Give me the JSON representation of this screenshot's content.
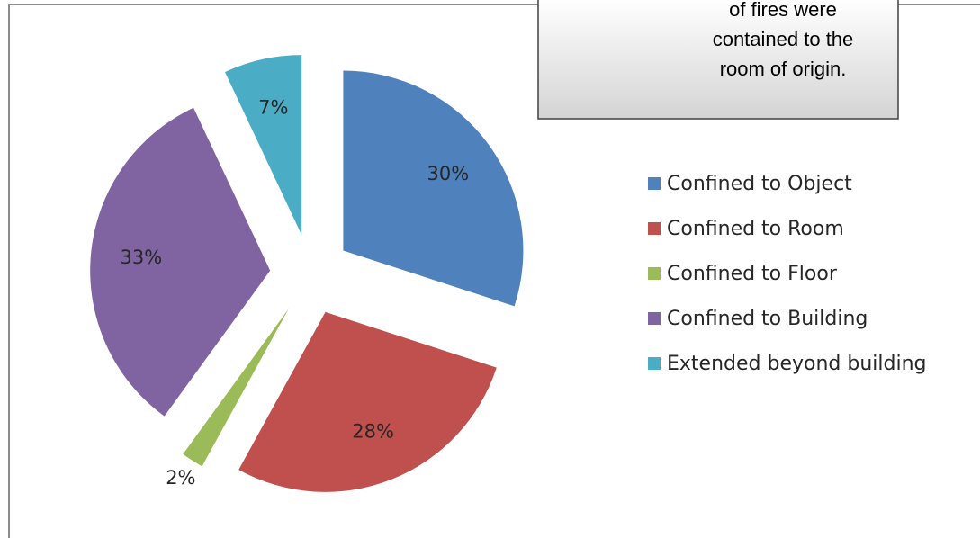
{
  "chart_data": {
    "type": "pie",
    "categories": [
      "Confined to Object",
      "Confined to Room",
      "Confined to Floor",
      "Confined to Building",
      "Extended beyond building"
    ],
    "values": [
      30,
      28,
      2,
      33,
      7
    ],
    "value_labels": [
      "30%",
      "28%",
      "2%",
      "33%",
      "7%"
    ],
    "colors": [
      "#4f81bd",
      "#c0504d",
      "#9bbb59",
      "#8064a2",
      "#4bacc6"
    ],
    "legend": "right",
    "annotation": [
      "of fires were",
      "contained to the",
      "room of origin."
    ]
  }
}
